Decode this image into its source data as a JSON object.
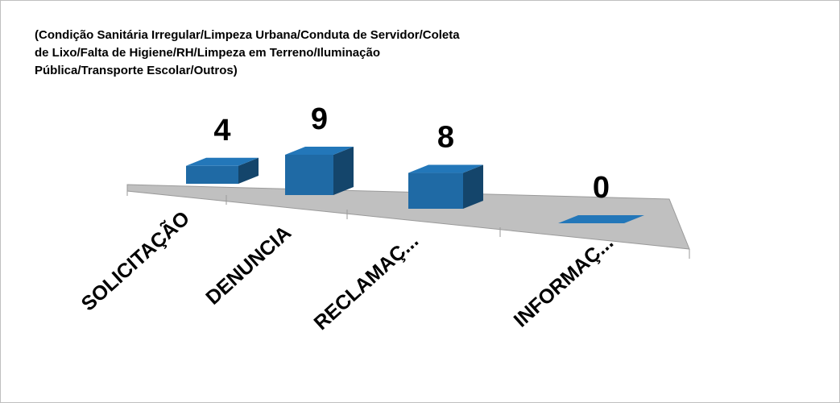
{
  "chart_data": {
    "type": "bar3d",
    "title": "(Condição Sanitária Irregular/Limpeza Urbana/Conduta de Servidor/Coleta de Lixo/Falta de Higiene/RH/Limpeza em Terreno/Iluminação Pública/Transporte Escolar/Outros)",
    "categories": [
      "SOLICITAÇÃO",
      "DENUNCIA",
      "RECLAMAÇ...",
      "INFORMAÇ..."
    ],
    "values": [
      4,
      9,
      8,
      0
    ],
    "color": "#1f6aa5"
  }
}
